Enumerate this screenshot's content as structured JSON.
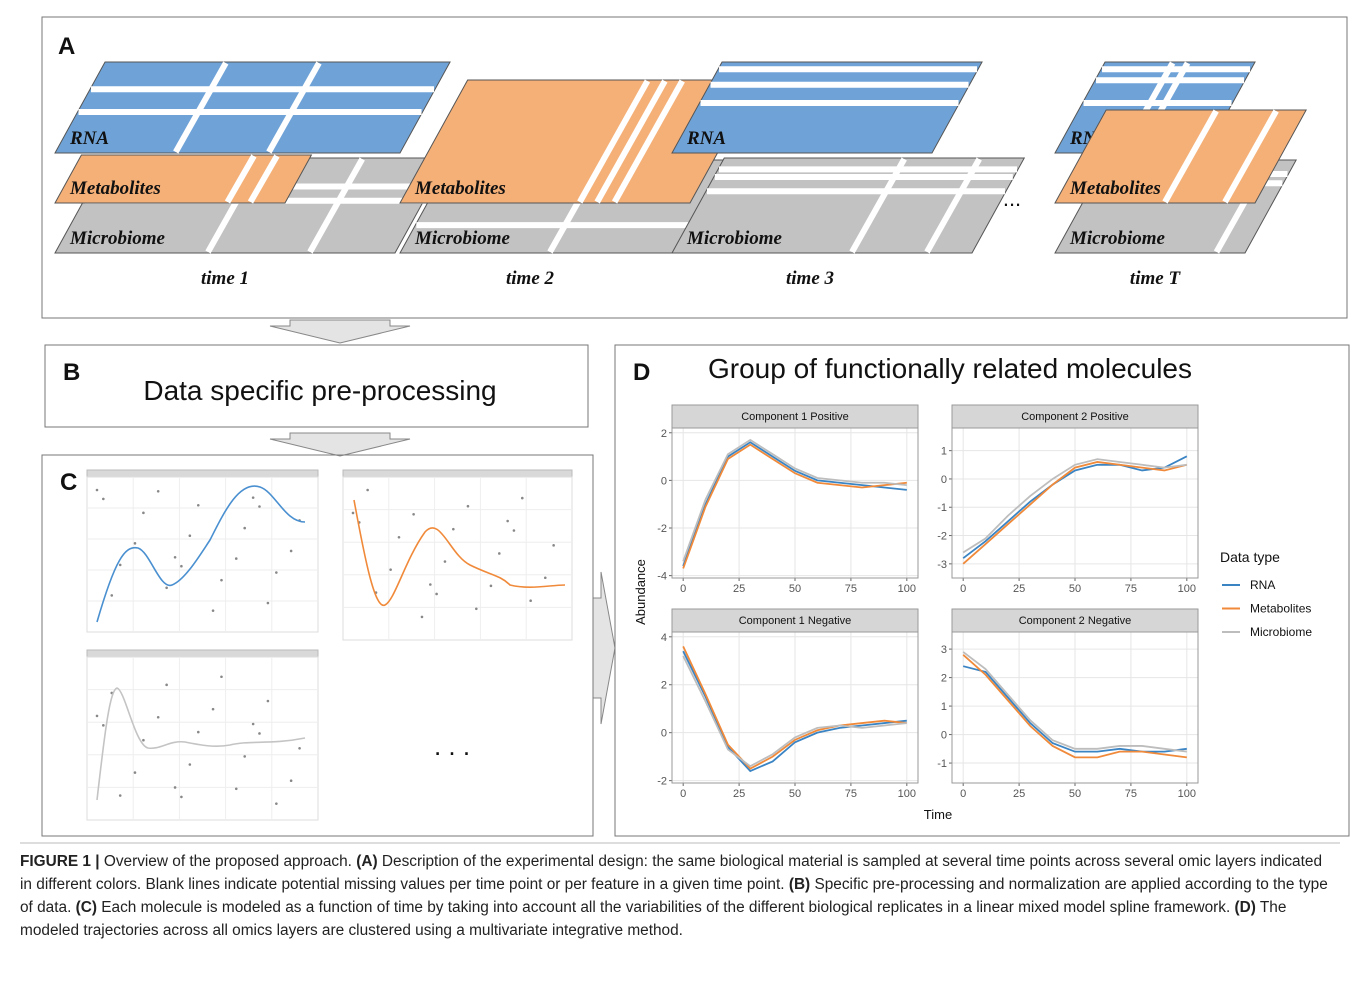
{
  "panel_a": {
    "label": "A",
    "time_points": [
      {
        "layers": [
          "RNA",
          "Metabolites",
          "Microbiome"
        ],
        "label": "time 1"
      },
      {
        "layers": [
          "Metabolites",
          "Microbiome"
        ],
        "label": "time 2"
      },
      {
        "layers": [
          "RNA",
          "Microbiome"
        ],
        "label": "time 3"
      },
      {
        "layers": [
          "RNA",
          "Metabolites",
          "Microbiome"
        ],
        "label": "time T"
      }
    ],
    "ellipsis": "..."
  },
  "panel_b": {
    "label": "B",
    "text": "Data specific pre-processing"
  },
  "panel_c": {
    "label": "C",
    "ellipsis": ". . ."
  },
  "panel_d": {
    "label": "D",
    "title": "Group of functionally related molecules",
    "type": "line",
    "x_label": "Time",
    "y_label": "Abundance",
    "x": [
      0,
      10,
      20,
      30,
      40,
      50,
      60,
      70,
      80,
      90,
      100
    ],
    "xlim": [
      -5,
      105
    ],
    "xticks": [
      0,
      25,
      50,
      75,
      100
    ],
    "legend": {
      "title": "Data type",
      "entries": [
        {
          "name": "RNA",
          "color": "#3a84c4"
        },
        {
          "name": "Metabolites",
          "color": "#f08a3a"
        },
        {
          "name": "Microbiome",
          "color": "#bdbdbd"
        }
      ]
    },
    "facets": [
      {
        "title": "Component 1 Positive",
        "ylim": [
          -4.1,
          2.2
        ],
        "yticks": [
          -4,
          -2,
          0,
          2
        ],
        "values": [
          [
            -3.6,
            -1,
            1,
            1.6,
            1,
            0.4,
            0,
            -0.1,
            -0.2,
            -0.3,
            -0.4
          ],
          [
            -3.7,
            -1.1,
            0.9,
            1.5,
            0.9,
            0.3,
            -0.1,
            -0.2,
            -0.3,
            -0.2,
            -0.1
          ],
          [
            -3.4,
            -0.8,
            1.1,
            1.7,
            1.1,
            0.5,
            0.1,
            0,
            -0.1,
            -0.1,
            -0.2
          ]
        ]
      },
      {
        "title": "Component 2 Positive",
        "ylim": [
          -3.5,
          1.8
        ],
        "yticks": [
          -3,
          -2,
          -1,
          0,
          1
        ],
        "values": [
          [
            -2.8,
            -2.2,
            -1.5,
            -0.8,
            -0.2,
            0.3,
            0.5,
            0.5,
            0.3,
            0.4,
            0.8
          ],
          [
            -3,
            -2.3,
            -1.6,
            -0.9,
            -0.2,
            0.4,
            0.6,
            0.5,
            0.4,
            0.3,
            0.5
          ],
          [
            -2.6,
            -2.1,
            -1.3,
            -0.6,
            0,
            0.5,
            0.7,
            0.6,
            0.5,
            0.4,
            0.5
          ]
        ]
      },
      {
        "title": "Component 1 Negative",
        "ylim": [
          -2.1,
          4.2
        ],
        "yticks": [
          -2,
          0,
          2,
          4
        ],
        "values": [
          [
            3.4,
            1.5,
            -0.6,
            -1.6,
            -1.2,
            -0.4,
            0,
            0.2,
            0.3,
            0.4,
            0.5
          ],
          [
            3.6,
            1.6,
            -0.5,
            -1.5,
            -1,
            -0.3,
            0.1,
            0.3,
            0.4,
            0.5,
            0.4
          ],
          [
            3.2,
            1.3,
            -0.7,
            -1.4,
            -0.9,
            -0.2,
            0.2,
            0.3,
            0.2,
            0.3,
            0.4
          ]
        ]
      },
      {
        "title": "Component 2 Negative",
        "ylim": [
          -1.7,
          3.6
        ],
        "yticks": [
          -1,
          0,
          1,
          2,
          3
        ],
        "values": [
          [
            2.4,
            2.2,
            1.3,
            0.4,
            -0.3,
            -0.6,
            -0.6,
            -0.5,
            -0.6,
            -0.6,
            -0.5
          ],
          [
            2.8,
            2.1,
            1.2,
            0.3,
            -0.4,
            -0.8,
            -0.8,
            -0.6,
            -0.6,
            -0.7,
            -0.8
          ],
          [
            2.9,
            2.3,
            1.4,
            0.5,
            -0.2,
            -0.5,
            -0.5,
            -0.4,
            -0.4,
            -0.5,
            -0.6
          ]
        ]
      }
    ]
  },
  "caption": {
    "segments": [
      {
        "text": "FIGURE 1 |",
        "bold": true
      },
      {
        "text": "Overview of the proposed approach.",
        "bold": false
      },
      {
        "text": "(A)",
        "bold": true
      },
      {
        "text": "Description of the experimental design: the same biological material is sampled at several time points across several omic layers indicated in different colors. Blank lines indicate potential missing values per time point or per feature in a given time point.",
        "bold": false
      },
      {
        "text": "(B)",
        "bold": true
      },
      {
        "text": "Specific pre-processing and normalization are applied according to the type of data.",
        "bold": false
      },
      {
        "text": "(C)",
        "bold": true
      },
      {
        "text": "Each molecule is modeled as a function of time by taking into account all the variabilities of the different biological replicates in a linear mixed model spline framework.",
        "bold": false
      },
      {
        "text": "(D)",
        "bold": true
      },
      {
        "text": "The modeled trajectories across all omics layers are clustered using a multivariate integrative method.",
        "bold": false
      }
    ]
  }
}
